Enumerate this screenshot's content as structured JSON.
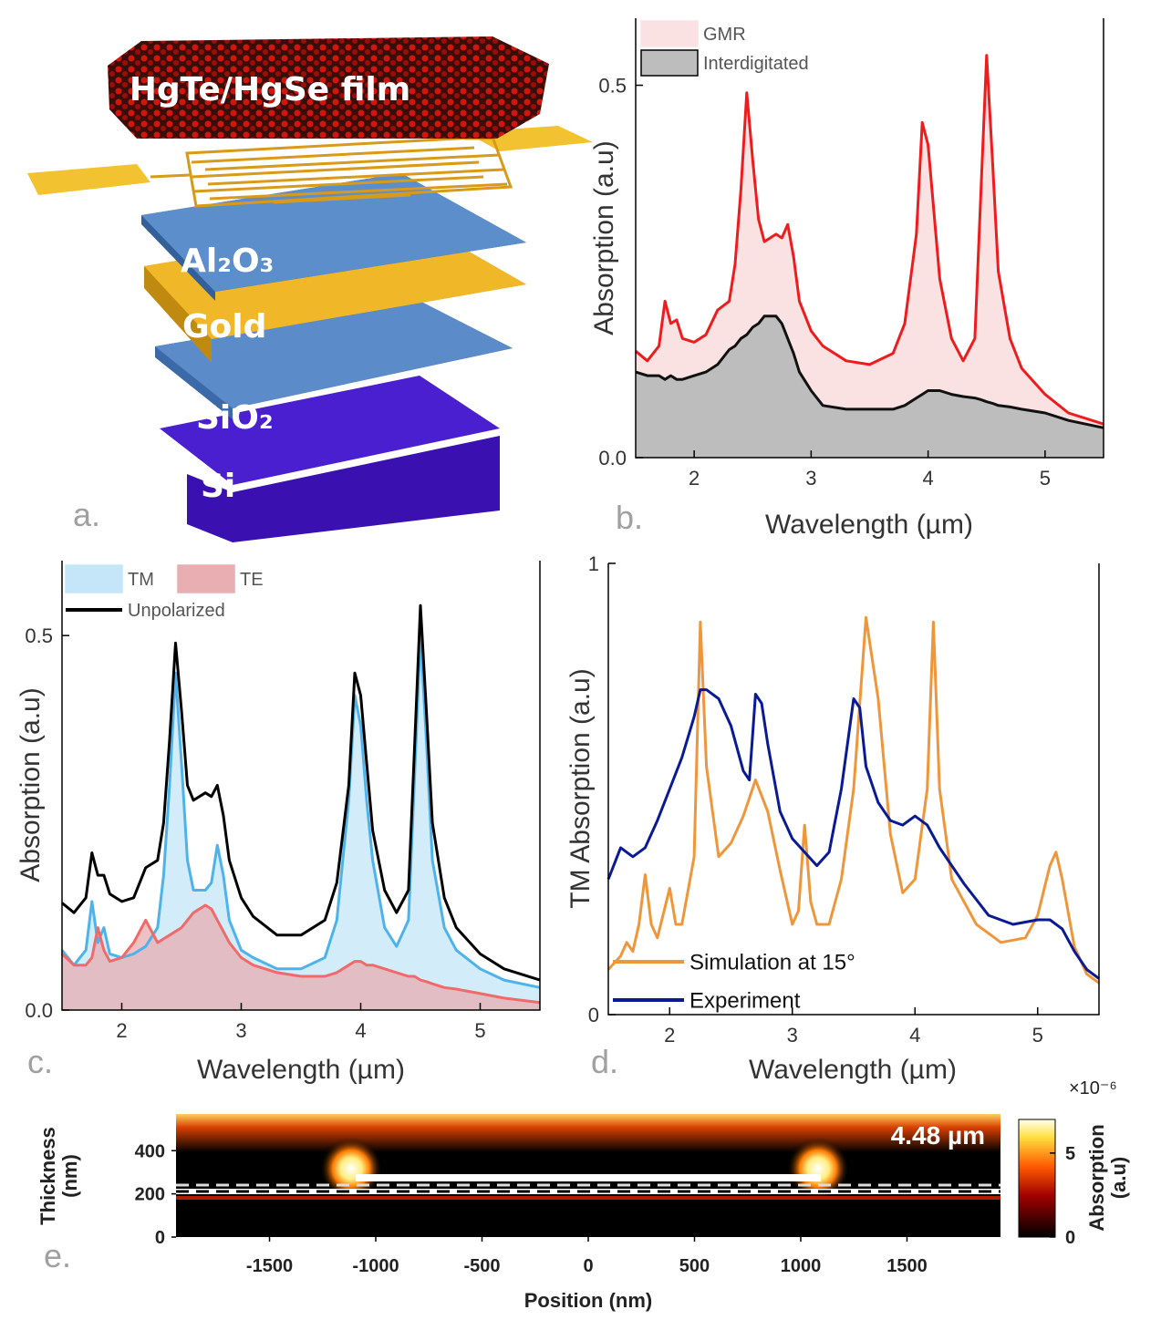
{
  "panels": {
    "letters": [
      "a.",
      "b.",
      "c.",
      "d.",
      "e."
    ]
  },
  "diagram": {
    "film_label": "HgTe/HgSe film",
    "layers": [
      "Al₂O₃",
      "Gold",
      "SiO₂",
      "Si"
    ]
  },
  "chart_data": [
    {
      "type": "area",
      "xlabel": "Wavelength (µm)",
      "ylabel": "Absorption (a.u)",
      "xlim": [
        1.5,
        5.5
      ],
      "ylim": [
        0,
        0.59
      ],
      "xticks": [
        2,
        3,
        4,
        5
      ],
      "yticks": [
        {
          "value": 0,
          "label": "0.0"
        },
        0.5
      ],
      "legend": "upper left",
      "x": [
        1.5,
        1.6,
        1.7,
        1.75,
        1.8,
        1.85,
        1.9,
        2.0,
        2.1,
        2.2,
        2.3,
        2.35,
        2.4,
        2.45,
        2.5,
        2.55,
        2.6,
        2.7,
        2.75,
        2.8,
        2.85,
        2.9,
        3.0,
        3.1,
        3.3,
        3.5,
        3.7,
        3.8,
        3.9,
        3.95,
        4.0,
        4.05,
        4.1,
        4.2,
        4.3,
        4.4,
        4.45,
        4.5,
        4.55,
        4.6,
        4.7,
        4.8,
        5.0,
        5.2,
        5.5
      ],
      "series": [
        {
          "name": "GMR",
          "color": "#ee1c1c",
          "fill": "#fbe2e2",
          "values": [
            0.143,
            0.13,
            0.15,
            0.21,
            0.18,
            0.185,
            0.16,
            0.155,
            0.165,
            0.198,
            0.21,
            0.26,
            0.36,
            0.49,
            0.4,
            0.32,
            0.29,
            0.3,
            0.295,
            0.313,
            0.27,
            0.21,
            0.17,
            0.15,
            0.13,
            0.125,
            0.14,
            0.18,
            0.3,
            0.45,
            0.42,
            0.33,
            0.24,
            0.16,
            0.13,
            0.16,
            0.35,
            0.54,
            0.4,
            0.25,
            0.16,
            0.12,
            0.085,
            0.06,
            0.045
          ]
        },
        {
          "name": "Interdigitated",
          "color": "#111111",
          "fill": "#bdbdbd",
          "values": [
            0.115,
            0.11,
            0.11,
            0.105,
            0.11,
            0.105,
            0.105,
            0.11,
            0.115,
            0.125,
            0.145,
            0.15,
            0.16,
            0.165,
            0.175,
            0.18,
            0.19,
            0.19,
            0.18,
            0.16,
            0.14,
            0.115,
            0.09,
            0.07,
            0.065,
            0.065,
            0.065,
            0.07,
            0.08,
            0.085,
            0.09,
            0.09,
            0.09,
            0.085,
            0.082,
            0.08,
            0.078,
            0.075,
            0.073,
            0.07,
            0.068,
            0.065,
            0.06,
            0.05,
            0.04
          ]
        }
      ]
    },
    {
      "type": "area",
      "xlabel": "Wavelength (µm)",
      "ylabel": "Absorption (a.u)",
      "xlim": [
        1.5,
        5.5
      ],
      "ylim": [
        0,
        0.6
      ],
      "xticks": [
        2,
        3,
        4,
        5
      ],
      "yticks": [
        {
          "value": 0,
          "label": "0.0"
        },
        0.5
      ],
      "legend": "upper left",
      "x": [
        1.5,
        1.6,
        1.7,
        1.75,
        1.8,
        1.85,
        1.9,
        2.0,
        2.1,
        2.2,
        2.3,
        2.35,
        2.4,
        2.45,
        2.5,
        2.55,
        2.6,
        2.7,
        2.75,
        2.8,
        2.85,
        2.9,
        3.0,
        3.1,
        3.3,
        3.5,
        3.7,
        3.8,
        3.9,
        3.95,
        4.0,
        4.05,
        4.1,
        4.2,
        4.3,
        4.4,
        4.45,
        4.5,
        4.55,
        4.6,
        4.7,
        4.8,
        5.0,
        5.2,
        5.5
      ],
      "series": [
        {
          "name": "TM",
          "color": "#4db3ea",
          "fill": "#c4e6f8",
          "values": [
            0.08,
            0.06,
            0.08,
            0.145,
            0.09,
            0.11,
            0.075,
            0.07,
            0.075,
            0.085,
            0.11,
            0.18,
            0.3,
            0.45,
            0.33,
            0.2,
            0.16,
            0.16,
            0.17,
            0.22,
            0.18,
            0.12,
            0.08,
            0.07,
            0.055,
            0.055,
            0.07,
            0.12,
            0.28,
            0.42,
            0.38,
            0.28,
            0.2,
            0.11,
            0.085,
            0.12,
            0.31,
            0.5,
            0.36,
            0.2,
            0.11,
            0.08,
            0.055,
            0.04,
            0.03
          ]
        },
        {
          "name": "TE",
          "color": "#f06a6a",
          "fill": "#e8aeb2",
          "values": [
            0.075,
            0.06,
            0.06,
            0.07,
            0.11,
            0.08,
            0.065,
            0.07,
            0.09,
            0.12,
            0.09,
            0.095,
            0.1,
            0.105,
            0.11,
            0.12,
            0.13,
            0.14,
            0.135,
            0.12,
            0.105,
            0.09,
            0.07,
            0.06,
            0.05,
            0.045,
            0.045,
            0.05,
            0.06,
            0.065,
            0.065,
            0.06,
            0.06,
            0.055,
            0.05,
            0.045,
            0.045,
            0.04,
            0.038,
            0.035,
            0.03,
            0.028,
            0.022,
            0.016,
            0.01
          ]
        },
        {
          "name": "Unpolarized",
          "color": "#000000",
          "values": [
            0.143,
            0.13,
            0.15,
            0.21,
            0.18,
            0.18,
            0.155,
            0.145,
            0.15,
            0.19,
            0.2,
            0.25,
            0.36,
            0.49,
            0.4,
            0.3,
            0.28,
            0.29,
            0.285,
            0.3,
            0.26,
            0.2,
            0.15,
            0.125,
            0.1,
            0.1,
            0.12,
            0.17,
            0.3,
            0.45,
            0.42,
            0.33,
            0.24,
            0.16,
            0.13,
            0.16,
            0.35,
            0.54,
            0.4,
            0.25,
            0.15,
            0.11,
            0.075,
            0.055,
            0.04
          ]
        }
      ]
    },
    {
      "type": "line",
      "xlabel": "Wavelength (µm)",
      "ylabel": "TM Absorption (a.u)",
      "xlim": [
        1.5,
        5.5
      ],
      "ylim": [
        0,
        1
      ],
      "xticks": [
        2,
        3,
        4,
        5
      ],
      "yticks": [
        0,
        1
      ],
      "legend": "lower left",
      "series": [
        {
          "name": "Simulation at 15°",
          "color": "#f0963a",
          "x": [
            1.5,
            1.6,
            1.65,
            1.7,
            1.75,
            1.8,
            1.85,
            1.9,
            2.0,
            2.05,
            2.1,
            2.2,
            2.25,
            2.3,
            2.4,
            2.5,
            2.6,
            2.7,
            2.8,
            2.9,
            3.0,
            3.05,
            3.1,
            3.15,
            3.2,
            3.3,
            3.4,
            3.5,
            3.6,
            3.7,
            3.8,
            3.9,
            4.0,
            4.1,
            4.15,
            4.2,
            4.3,
            4.5,
            4.7,
            4.9,
            5.0,
            5.1,
            5.15,
            5.2,
            5.3,
            5.4,
            5.5
          ],
          "values": [
            0.1,
            0.13,
            0.16,
            0.14,
            0.2,
            0.31,
            0.2,
            0.17,
            0.28,
            0.2,
            0.2,
            0.35,
            0.87,
            0.55,
            0.35,
            0.38,
            0.44,
            0.52,
            0.45,
            0.32,
            0.2,
            0.23,
            0.42,
            0.25,
            0.2,
            0.2,
            0.3,
            0.5,
            0.88,
            0.7,
            0.4,
            0.27,
            0.3,
            0.5,
            0.87,
            0.5,
            0.3,
            0.2,
            0.16,
            0.17,
            0.22,
            0.33,
            0.36,
            0.3,
            0.15,
            0.09,
            0.07
          ]
        },
        {
          "name": "Experiment",
          "color": "#0a1a96",
          "x": [
            1.5,
            1.6,
            1.7,
            1.8,
            1.9,
            2.0,
            2.1,
            2.2,
            2.25,
            2.3,
            2.4,
            2.5,
            2.6,
            2.65,
            2.7,
            2.75,
            2.8,
            2.9,
            3.0,
            3.1,
            3.2,
            3.3,
            3.4,
            3.5,
            3.55,
            3.6,
            3.7,
            3.8,
            3.9,
            4.0,
            4.1,
            4.2,
            4.4,
            4.6,
            4.8,
            5.0,
            5.1,
            5.2,
            5.3,
            5.4,
            5.5
          ],
          "values": [
            0.3,
            0.37,
            0.35,
            0.37,
            0.43,
            0.5,
            0.57,
            0.66,
            0.72,
            0.72,
            0.7,
            0.64,
            0.54,
            0.52,
            0.71,
            0.69,
            0.6,
            0.45,
            0.39,
            0.36,
            0.33,
            0.36,
            0.5,
            0.7,
            0.68,
            0.55,
            0.47,
            0.43,
            0.42,
            0.44,
            0.42,
            0.37,
            0.29,
            0.22,
            0.2,
            0.21,
            0.21,
            0.19,
            0.14,
            0.1,
            0.08
          ]
        }
      ]
    },
    {
      "type": "heatmap",
      "annotation": "4.48 µm",
      "xlabel": "Position (nm)",
      "ylabel": "Thickness (nm)",
      "xlim": [
        -1940,
        1940
      ],
      "ylim": [
        0,
        570
      ],
      "xticks": [
        -1500,
        -1000,
        -500,
        0,
        500,
        1000,
        1500
      ],
      "yticks": [
        0,
        200,
        400
      ],
      "colorbar": {
        "lim": [
          0,
          7
        ],
        "ticks": [
          0,
          5
        ],
        "label": "Absorption (a.u)",
        "multiplier": "×10⁻⁶"
      }
    }
  ]
}
